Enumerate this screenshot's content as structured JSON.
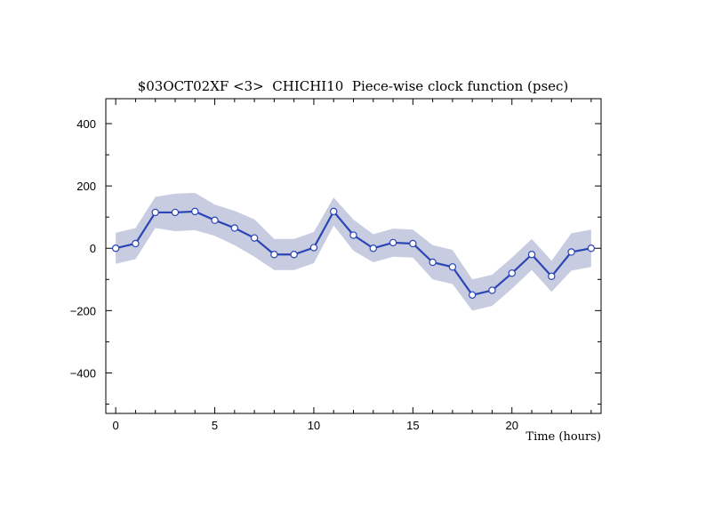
{
  "chart_data": {
    "type": "line",
    "title": "$03OCT02XF <3>  CHICHI10  Piece-wise clock function (psec)",
    "xlabel": "Time (hours)",
    "ylabel": "",
    "xlim": [
      -0.5,
      24.5
    ],
    "ylim": [
      -530,
      480
    ],
    "x_ticks": [
      0,
      5,
      10,
      15,
      20
    ],
    "y_ticks": [
      400,
      200,
      0,
      -200,
      -400
    ],
    "x_minor_ticks": [
      1,
      2,
      3,
      4,
      6,
      7,
      8,
      9,
      11,
      12,
      13,
      14,
      16,
      17,
      18,
      19,
      21,
      22,
      23,
      24
    ],
    "y_minor_ticks": [
      300,
      100,
      -100,
      -300,
      -500
    ],
    "grid": false,
    "colors": {
      "line": "#2b45b5",
      "band": "#c8cce0",
      "marker_fill": "#ffffff"
    },
    "series": [
      {
        "x": [
          0,
          1,
          2,
          3,
          4,
          5,
          6,
          7,
          8,
          9,
          10,
          11,
          12,
          13,
          14,
          15,
          16,
          17,
          18,
          19,
          20,
          21,
          22,
          23,
          24
        ],
        "values": [
          0,
          15,
          115,
          115,
          118,
          90,
          65,
          33,
          -20,
          -20,
          2,
          118,
          42,
          0,
          18,
          15,
          -45,
          -60,
          -150,
          -135,
          -80,
          -20,
          -90,
          -12,
          0
        ],
        "band": [
          50,
          50,
          50,
          60,
          60,
          50,
          55,
          60,
          50,
          50,
          50,
          45,
          50,
          45,
          45,
          45,
          55,
          55,
          50,
          50,
          50,
          50,
          50,
          60,
          60
        ]
      }
    ]
  }
}
